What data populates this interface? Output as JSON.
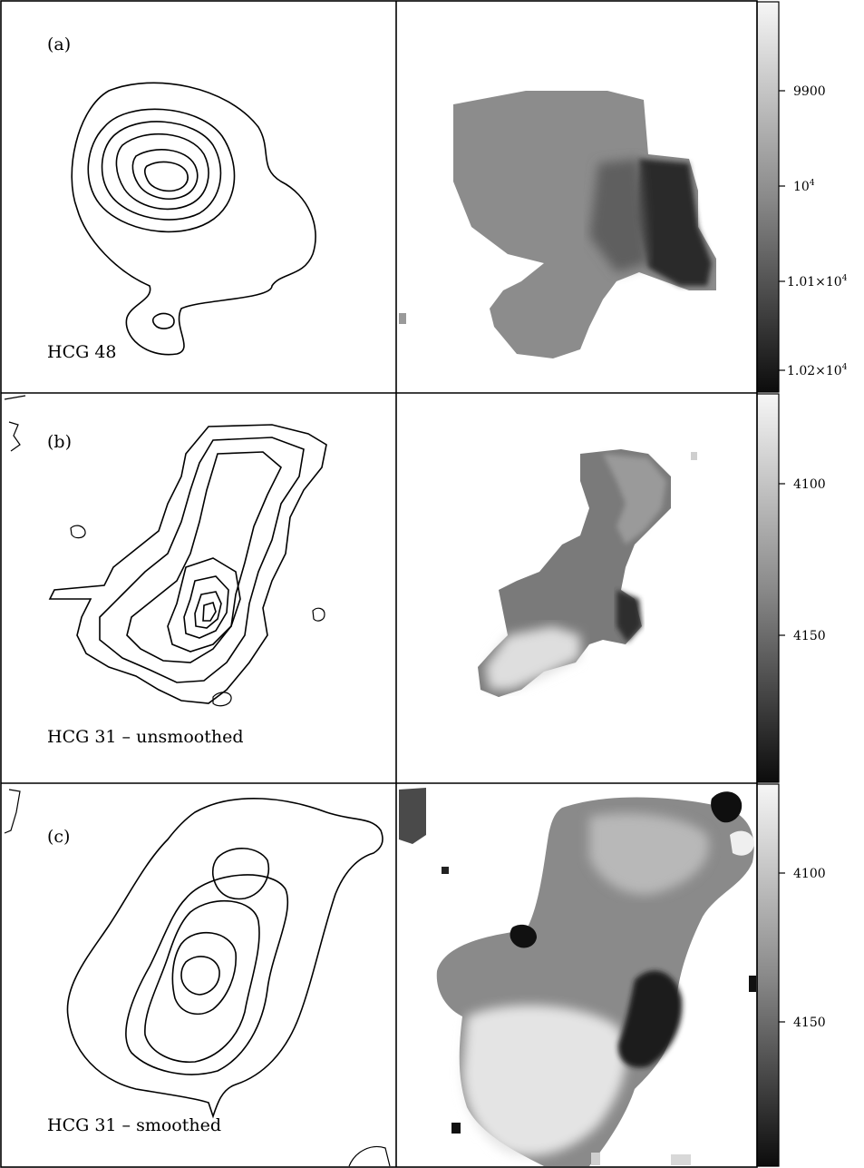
{
  "figure": {
    "rows": [
      {
        "panel_label": "(a)",
        "object_label": "HCG 48",
        "colorbar": {
          "ticks": [
            {
              "label": "9900",
              "superscript": ""
            },
            {
              "label": "10",
              "superscript": "4"
            },
            {
              "label": "1.01×10",
              "superscript": "4"
            },
            {
              "label": "1.02×10",
              "superscript": "4"
            }
          ]
        }
      },
      {
        "panel_label": "(b)",
        "object_label": "HCG 31 – unsmoothed",
        "colorbar": {
          "ticks": [
            {
              "label": "4100",
              "superscript": ""
            },
            {
              "label": "4150",
              "superscript": ""
            }
          ]
        }
      },
      {
        "panel_label": "(c)",
        "object_label": "HCG 31 – smoothed",
        "colorbar": {
          "ticks": [
            {
              "label": "4100",
              "superscript": ""
            },
            {
              "label": "4150",
              "superscript": ""
            }
          ]
        }
      }
    ],
    "colors": {
      "frame": "#000000",
      "background": "#ffffff",
      "colorbar_top": "#f4f4f4",
      "colorbar_bottom": "#101010"
    }
  }
}
